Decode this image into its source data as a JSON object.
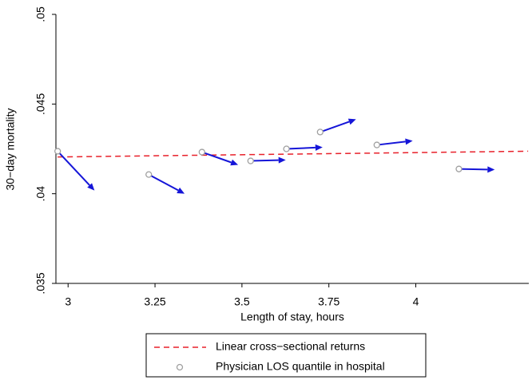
{
  "chart_data": {
    "type": "scatter",
    "x_label": "Length of stay, hours",
    "y_label": "30−day mortality",
    "xlim": [
      2.965,
      4.325
    ],
    "ylim": [
      0.035,
      0.05
    ],
    "xticks": [
      3,
      3.25,
      3.5,
      3.75,
      4
    ],
    "yticks": [
      {
        "value": 0.035,
        "label": ".035"
      },
      {
        "value": 0.04,
        "label": ".04"
      },
      {
        "value": 0.045,
        "label": ".045"
      },
      {
        "value": 0.05,
        "label": ".05"
      }
    ],
    "series": [
      {
        "name": "Linear cross−sectional returns",
        "type": "line",
        "dashed": true,
        "color": "#e8202a",
        "x": [
          2.97,
          4.323
        ],
        "values": [
          0.04205,
          0.04237
        ]
      },
      {
        "name": "Physician LOS quantile in hospital",
        "type": "scatter",
        "color": "#a0a0a0",
        "arrow_color": "#1515d8",
        "x": [
          2.97,
          3.232,
          3.385,
          3.525,
          3.628,
          3.725,
          3.888,
          4.124
        ],
        "values": [
          0.04237,
          0.04107,
          0.04232,
          0.04183,
          0.0425,
          0.04344,
          0.04272,
          0.04138
        ],
        "arrow_x": [
          3.076,
          3.335,
          3.489,
          3.626,
          3.732,
          3.828,
          3.991,
          4.227
        ],
        "arrow_y": [
          0.04018,
          0.04,
          0.04161,
          0.04188,
          0.04259,
          0.04415,
          0.04295,
          0.04134
        ]
      }
    ]
  }
}
